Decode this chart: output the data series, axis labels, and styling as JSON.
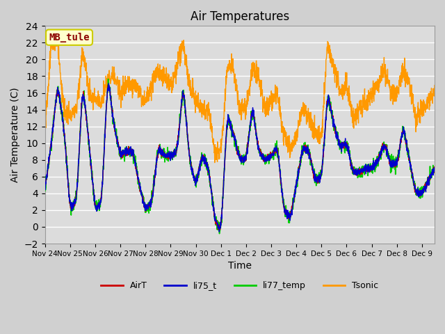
{
  "title": "Air Temperatures",
  "xlabel": "Time",
  "ylabel": "Air Temperature (C)",
  "ylim": [
    -2,
    24
  ],
  "yticks": [
    -2,
    0,
    2,
    4,
    6,
    8,
    10,
    12,
    14,
    16,
    18,
    20,
    22,
    24
  ],
  "x_tick_labels": [
    "Nov 24",
    "Nov 25",
    "Nov 26",
    "Nov 27",
    "Nov 28",
    "Nov 29",
    "Nov 30",
    "Dec 1",
    "Dec 2",
    "Dec 3",
    "Dec 4",
    "Dec 5",
    "Dec 6",
    "Dec 7",
    "Dec 8",
    "Dec 9"
  ],
  "plot_bg_color": "#dcdcdc",
  "fig_bg_color": "#d0d0d0",
  "legend_series": [
    "AirT",
    "li75_t",
    "li77_temp",
    "Tsonic"
  ],
  "colors": {
    "AirT": "#cc0000",
    "li75_t": "#0000cc",
    "li77_temp": "#00cc00",
    "Tsonic": "#ff9900"
  },
  "annotation_text": "MB_tule",
  "annotation_color": "#8b0000",
  "annotation_bg": "#ffffcc",
  "annotation_border": "#cccc00",
  "key_t": [
    0,
    0.25,
    0.5,
    0.75,
    1.0,
    1.25,
    1.5,
    1.75,
    2.0,
    2.25,
    2.5,
    2.75,
    3.0,
    3.25,
    3.5,
    3.75,
    4.0,
    4.25,
    4.5,
    4.75,
    5.0,
    5.25,
    5.5,
    5.75,
    6.0,
    6.25,
    6.5,
    6.75,
    7.0,
    7.25,
    7.5,
    7.75,
    8.0,
    8.25,
    8.5,
    8.75,
    9.0,
    9.25,
    9.5,
    9.75,
    10.0,
    10.25,
    10.5,
    10.75,
    11.0,
    11.25,
    11.5,
    11.75,
    12.0,
    12.25,
    12.5,
    12.75,
    13.0,
    13.25,
    13.5,
    13.75,
    14.0,
    14.25,
    14.5,
    14.75,
    15.0,
    15.5
  ],
  "key_v_main": [
    4.5,
    10,
    17,
    12,
    2,
    3,
    17,
    10,
    2,
    3,
    18,
    12,
    8.5,
    9,
    9,
    5,
    2,
    3,
    9.5,
    8.5,
    8.5,
    9,
    17,
    8,
    5,
    8.5,
    7,
    1,
    -0.7,
    13.5,
    11,
    8,
    8,
    14.5,
    9,
    8,
    8.5,
    9.5,
    2,
    1,
    5,
    9.5,
    9,
    5.5,
    6,
    16,
    12,
    9.5,
    10,
    6.5,
    6.5,
    7,
    7,
    8,
    10,
    7.5,
    7.5,
    12,
    8,
    4,
    4,
    7
  ],
  "key_v_tsonic": [
    12,
    22,
    22,
    14,
    13,
    14,
    21,
    16,
    15,
    15,
    18,
    18,
    16,
    17,
    17,
    16,
    15,
    17,
    19,
    18,
    17,
    19,
    22,
    17,
    15,
    14,
    14,
    9,
    9,
    19,
    19,
    14,
    14,
    19,
    18,
    14,
    15,
    16,
    11,
    9,
    11,
    14,
    13,
    11,
    11,
    22,
    19,
    16,
    17,
    13,
    14,
    15,
    16,
    17,
    19,
    16,
    16,
    19,
    17,
    13,
    14,
    16
  ]
}
